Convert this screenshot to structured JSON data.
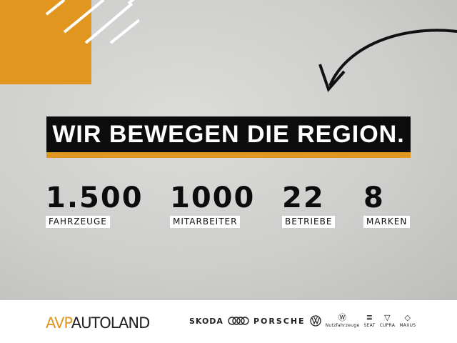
{
  "colors": {
    "accent": "#e0961f",
    "banner": "#0c0c0c"
  },
  "headline": "WIR BEWEGEN DIE REGION.",
  "stats": [
    {
      "value": "1.500",
      "label": "FAHRZEUGE"
    },
    {
      "value": "1000",
      "label": "MITARBEITER"
    },
    {
      "value": "22",
      "label": "BETRIEBE"
    },
    {
      "value": "8",
      "label": "MARKEN"
    }
  ],
  "footer": {
    "logo": {
      "part1": "AVP",
      "part2": "AUTOLAND"
    },
    "brands": [
      "SKODA",
      "PORSCHE",
      "Nutzfahrzeuge",
      "SEAT",
      "CUPRA",
      "MAXUS"
    ],
    "brand_icons": [
      "audi-rings-icon",
      "vw-logo-icon",
      "vw-commercial-logo-icon",
      "seat-logo-icon",
      "cupra-logo-icon",
      "maxus-logo-icon"
    ]
  }
}
